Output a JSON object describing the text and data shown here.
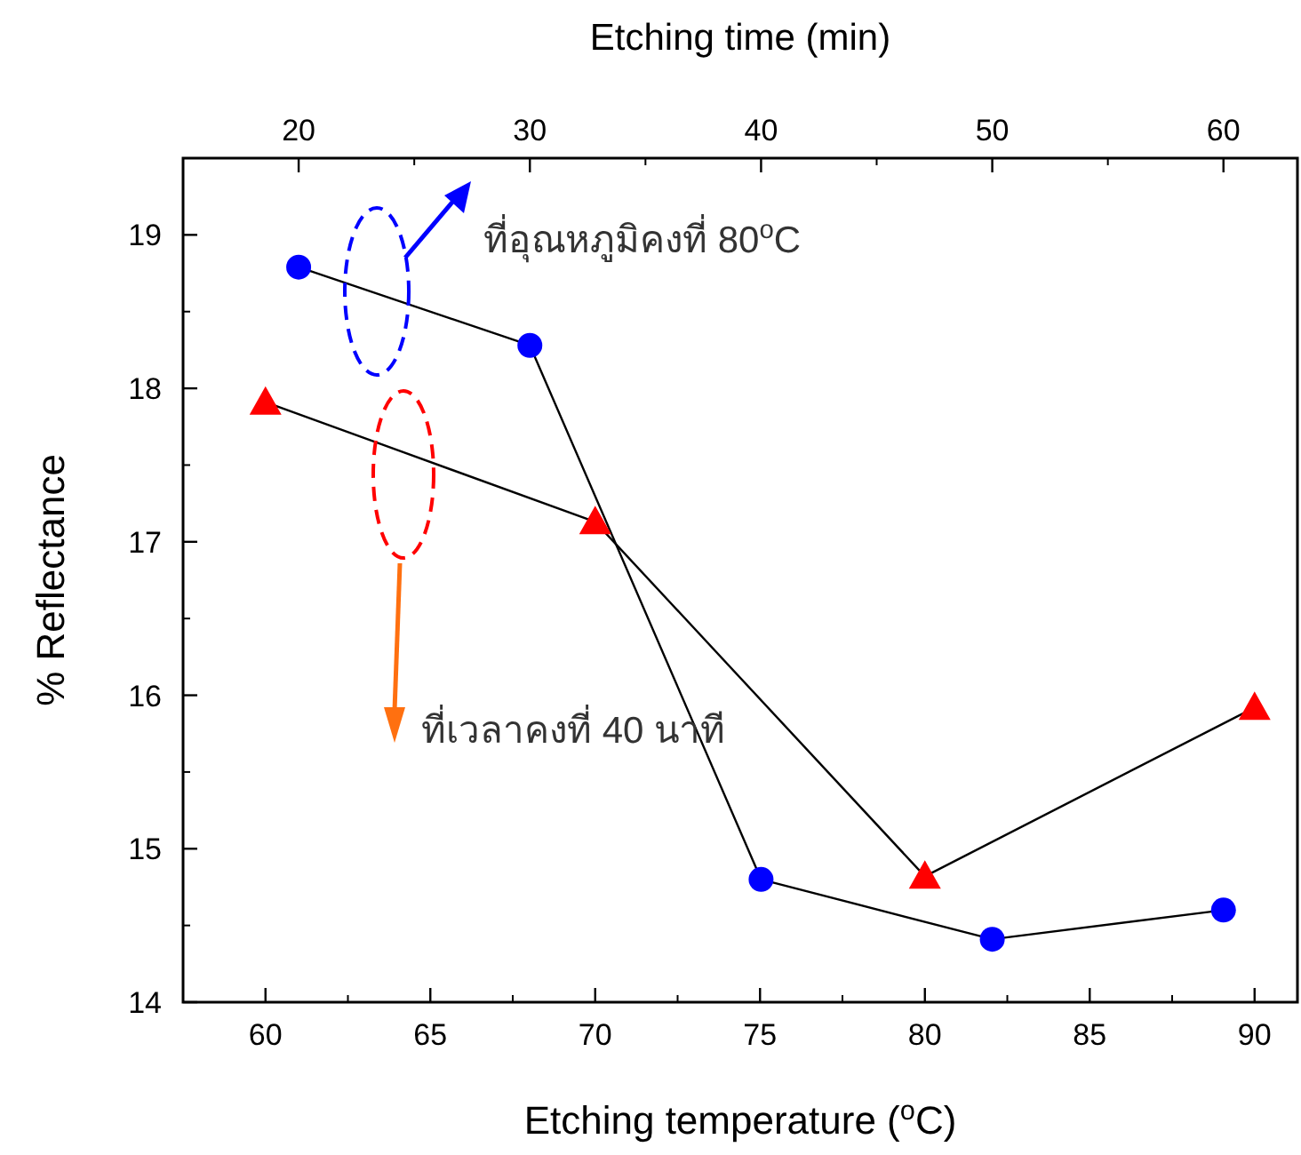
{
  "chart_data": {
    "type": "line",
    "xlabel": "Etching temperature ($^{o}$C)",
    "ylabel": "% Reflectance",
    "x2label": "Etching time (min)",
    "xlim": [
      57.5,
      91.3
    ],
    "xticks": [
      60,
      65,
      70,
      75,
      80,
      85,
      90
    ],
    "x2lim": [
      15,
      63.2
    ],
    "x2ticks": [
      20,
      30,
      40,
      50,
      60
    ],
    "ylim": [
      14,
      19.5
    ],
    "yticks": [
      14,
      15,
      16,
      17,
      18,
      19
    ],
    "series": [
      {
        "color": "#0000ff",
        "marker": "circle",
        "axis": "x2",
        "x": [
          20,
          30,
          40,
          50,
          60
        ],
        "values": [
          18.79,
          18.28,
          14.8,
          14.41,
          14.6
        ]
      },
      {
        "color": "#ff0000",
        "marker": "triangle",
        "x": [
          60,
          70,
          80,
          90
        ],
        "values": [
          17.91,
          17.13,
          14.82,
          15.92
        ]
      }
    ],
    "annotations": [
      "ที่อุณหภูมิคงที่ 80$^{o}$C",
      "ที่เวลาคงที่ 40 นาที"
    ]
  }
}
